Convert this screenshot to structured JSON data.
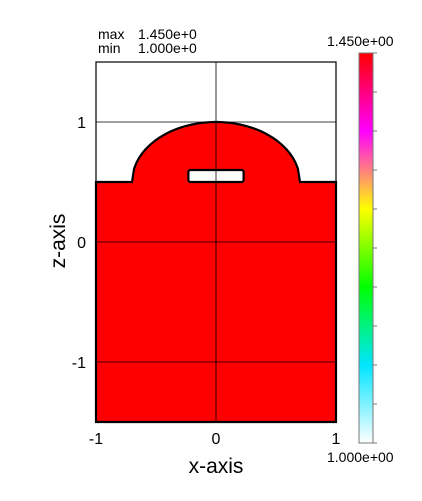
{
  "stats": {
    "max_label": "max",
    "max_value": "1.450e+0",
    "min_label": "min",
    "min_value": "1.000e+0"
  },
  "colorbar": {
    "max_label": "1.450e+00",
    "min_label": "1.000e+00",
    "gradient_colors": [
      "#ffffff",
      "#00e5ff",
      "#00ff00",
      "#ffff00",
      "#ff00ff",
      "#ff0000"
    ]
  },
  "chart_data": {
    "type": "heatmap",
    "xlabel": "x-axis",
    "ylabel": "z-axis",
    "xlim": [
      -1,
      1
    ],
    "ylim": [
      -1.5,
      1.5
    ],
    "x_ticks": [
      -1,
      0,
      1
    ],
    "x_tick_labels": [
      "-1",
      "0",
      "1"
    ],
    "y_ticks": [
      -1,
      0,
      1
    ],
    "y_tick_labels": [
      "-1",
      "0",
      "1"
    ],
    "grid": true,
    "fill_color": "#ff0000",
    "fill_value": 1.45,
    "background_value": 1.0,
    "region": {
      "base_top_z": 0.5,
      "dome_center": [
        0,
        0.5
      ],
      "dome_radius": 0.5,
      "dome_peak_z": 1.0,
      "dome_x_range": [
        -0.7,
        0.7
      ]
    },
    "cavity": {
      "x_range": [
        -0.23,
        0.23
      ],
      "z_range": [
        0.5,
        0.6
      ],
      "value": 1.0
    }
  }
}
